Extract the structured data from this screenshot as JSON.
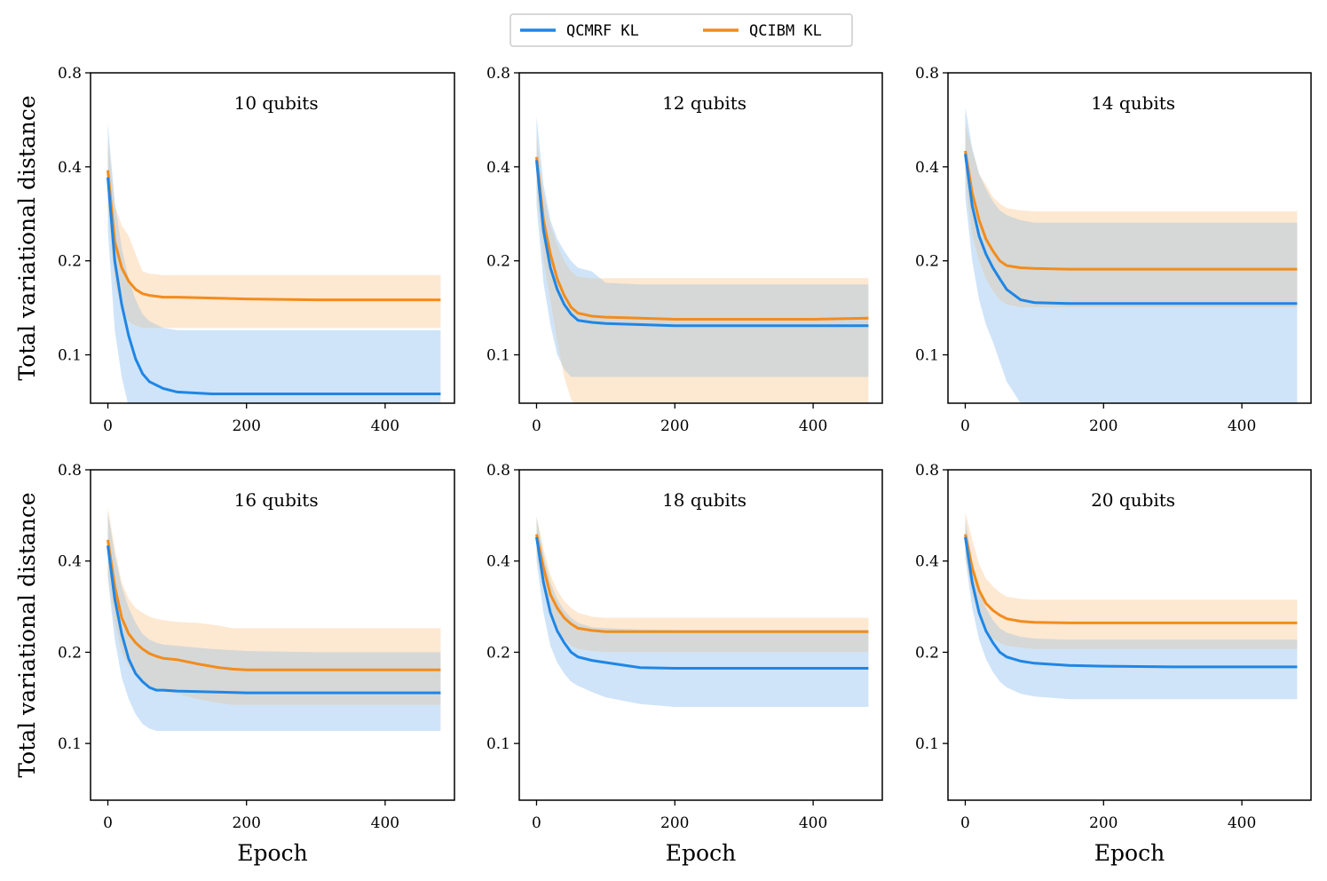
{
  "legend": {
    "location": "top-center",
    "entries": [
      {
        "label": "QCMRF KL",
        "color": "#1f86e6"
      },
      {
        "label": "QCIBM KL",
        "color": "#f28c1c"
      }
    ]
  },
  "colors": {
    "qcmrf": "#1f86e6",
    "qcibm": "#f28c1c",
    "qcmrf_band": "#cfe4f8",
    "qcibm_band": "#fde8d2",
    "overlap_band": "#d5d8d6"
  },
  "chart_data": [
    {
      "type": "line",
      "title": "10 qubits",
      "xlabel": "",
      "ylabel": "Total variational distance",
      "xlim": [
        -25,
        500
      ],
      "ylim_log": [
        0.07,
        0.8
      ],
      "y_scale": "log",
      "xticks": [
        0,
        200,
        400
      ],
      "xtick_labels": [
        "0",
        "200",
        "400"
      ],
      "yticks": [
        0.1,
        0.2,
        0.4,
        0.8
      ],
      "ytick_labels": [
        "0.1",
        "0.2",
        "0.4",
        "0.8"
      ],
      "series": [
        {
          "name": "QCMRF KL",
          "x": [
            0,
            10,
            20,
            30,
            40,
            50,
            60,
            80,
            100,
            150,
            200,
            300,
            400,
            480
          ],
          "mean": [
            0.37,
            0.2,
            0.145,
            0.115,
            0.097,
            0.087,
            0.082,
            0.078,
            0.076,
            0.075,
            0.075,
            0.075,
            0.075,
            0.075
          ],
          "upper": [
            0.55,
            0.31,
            0.22,
            0.175,
            0.15,
            0.135,
            0.128,
            0.122,
            0.12,
            0.12,
            0.12,
            0.12,
            0.12,
            0.12
          ],
          "lower": [
            0.25,
            0.12,
            0.085,
            0.068,
            0.062,
            0.06,
            0.06,
            0.06,
            0.06,
            0.06,
            0.06,
            0.06,
            0.06,
            0.06
          ]
        },
        {
          "name": "QCIBM KL",
          "x": [
            0,
            10,
            20,
            30,
            40,
            50,
            60,
            80,
            100,
            150,
            200,
            300,
            400,
            480
          ],
          "mean": [
            0.39,
            0.23,
            0.19,
            0.172,
            0.162,
            0.157,
            0.155,
            0.153,
            0.153,
            0.152,
            0.151,
            0.15,
            0.15,
            0.15
          ],
          "upper": [
            0.49,
            0.3,
            0.26,
            0.24,
            0.21,
            0.185,
            0.182,
            0.18,
            0.18,
            0.18,
            0.18,
            0.18,
            0.18,
            0.18
          ],
          "lower": [
            0.3,
            0.17,
            0.14,
            0.128,
            0.124,
            0.122,
            0.122,
            0.122,
            0.122,
            0.122,
            0.122,
            0.122,
            0.122,
            0.122
          ]
        }
      ]
    },
    {
      "type": "line",
      "title": "12 qubits",
      "xlabel": "",
      "ylabel": "",
      "xlim": [
        -25,
        500
      ],
      "ylim_log": [
        0.07,
        0.8
      ],
      "y_scale": "log",
      "xticks": [
        0,
        200,
        400
      ],
      "xtick_labels": [
        "0",
        "200",
        "400"
      ],
      "yticks": [
        0.1,
        0.2,
        0.4,
        0.8
      ],
      "ytick_labels": [
        "0.1",
        "0.2",
        "0.4",
        "0.8"
      ],
      "series": [
        {
          "name": "QCMRF KL",
          "x": [
            0,
            10,
            20,
            30,
            40,
            50,
            60,
            80,
            100,
            150,
            200,
            300,
            400,
            480
          ],
          "mean": [
            0.42,
            0.25,
            0.19,
            0.162,
            0.145,
            0.135,
            0.129,
            0.127,
            0.126,
            0.125,
            0.124,
            0.124,
            0.124,
            0.124
          ],
          "upper": [
            0.58,
            0.35,
            0.27,
            0.235,
            0.215,
            0.2,
            0.19,
            0.185,
            0.17,
            0.168,
            0.168,
            0.168,
            0.168,
            0.168
          ],
          "lower": [
            0.3,
            0.17,
            0.125,
            0.1,
            0.09,
            0.085,
            0.085,
            0.085,
            0.085,
            0.085,
            0.085,
            0.085,
            0.085,
            0.085
          ]
        },
        {
          "name": "QCIBM KL",
          "x": [
            0,
            10,
            20,
            30,
            40,
            50,
            60,
            80,
            100,
            150,
            200,
            300,
            400,
            480
          ],
          "mean": [
            0.43,
            0.27,
            0.21,
            0.175,
            0.155,
            0.142,
            0.136,
            0.133,
            0.132,
            0.131,
            0.13,
            0.13,
            0.13,
            0.131
          ],
          "upper": [
            0.5,
            0.33,
            0.26,
            0.225,
            0.2,
            0.185,
            0.178,
            0.176,
            0.176,
            0.176,
            0.176,
            0.176,
            0.176,
            0.176
          ],
          "lower": [
            0.34,
            0.2,
            0.15,
            0.11,
            0.085,
            0.072,
            0.068,
            0.066,
            0.066,
            0.066,
            0.066,
            0.066,
            0.066,
            0.066
          ]
        }
      ]
    },
    {
      "type": "line",
      "title": "14 qubits",
      "xlabel": "",
      "ylabel": "",
      "xlim": [
        -25,
        500
      ],
      "ylim_log": [
        0.07,
        0.8
      ],
      "y_scale": "log",
      "xticks": [
        0,
        200,
        400
      ],
      "xtick_labels": [
        "0",
        "200",
        "400"
      ],
      "yticks": [
        0.1,
        0.2,
        0.4,
        0.8
      ],
      "ytick_labels": [
        "0.1",
        "0.2",
        "0.4",
        "0.8"
      ],
      "series": [
        {
          "name": "QCMRF KL",
          "x": [
            0,
            10,
            20,
            30,
            40,
            50,
            60,
            80,
            100,
            150,
            200,
            300,
            400,
            480
          ],
          "mean": [
            0.44,
            0.3,
            0.24,
            0.21,
            0.19,
            0.175,
            0.162,
            0.15,
            0.147,
            0.146,
            0.146,
            0.146,
            0.146,
            0.146
          ],
          "upper": [
            0.62,
            0.46,
            0.38,
            0.34,
            0.31,
            0.29,
            0.28,
            0.27,
            0.265,
            0.265,
            0.265,
            0.265,
            0.265,
            0.265
          ],
          "lower": [
            0.32,
            0.2,
            0.15,
            0.125,
            0.11,
            0.095,
            0.082,
            0.07,
            0.065,
            0.065,
            0.065,
            0.065,
            0.065,
            0.065
          ]
        },
        {
          "name": "QCIBM KL",
          "x": [
            0,
            10,
            20,
            30,
            40,
            50,
            60,
            80,
            100,
            150,
            200,
            300,
            400,
            480
          ],
          "mean": [
            0.45,
            0.33,
            0.27,
            0.235,
            0.215,
            0.2,
            0.193,
            0.19,
            0.189,
            0.188,
            0.188,
            0.188,
            0.188,
            0.188
          ],
          "upper": [
            0.55,
            0.45,
            0.38,
            0.35,
            0.32,
            0.305,
            0.295,
            0.29,
            0.288,
            0.288,
            0.288,
            0.288,
            0.288,
            0.288
          ],
          "lower": [
            0.36,
            0.24,
            0.2,
            0.175,
            0.16,
            0.15,
            0.145,
            0.142,
            0.142,
            0.142,
            0.142,
            0.142,
            0.142,
            0.142
          ]
        }
      ]
    },
    {
      "type": "line",
      "title": "16 qubits",
      "xlabel": "Epoch",
      "ylabel": "Total variational distance",
      "xlim": [
        -25,
        500
      ],
      "ylim_log": [
        0.065,
        0.8
      ],
      "y_scale": "log",
      "xticks": [
        0,
        200,
        400
      ],
      "xtick_labels": [
        "0",
        "200",
        "400"
      ],
      "yticks": [
        0.1,
        0.2,
        0.4,
        0.8
      ],
      "ytick_labels": [
        "0.1",
        "0.2",
        "0.4",
        "0.8"
      ],
      "series": [
        {
          "name": "QCMRF KL",
          "x": [
            0,
            10,
            20,
            30,
            40,
            50,
            60,
            70,
            80,
            100,
            150,
            200,
            300,
            400,
            480
          ],
          "mean": [
            0.45,
            0.3,
            0.23,
            0.19,
            0.17,
            0.16,
            0.153,
            0.15,
            0.15,
            0.149,
            0.148,
            0.147,
            0.147,
            0.147,
            0.147
          ],
          "upper": [
            0.58,
            0.42,
            0.33,
            0.28,
            0.25,
            0.23,
            0.22,
            0.215,
            0.212,
            0.21,
            0.205,
            0.202,
            0.2,
            0.2,
            0.2
          ],
          "lower": [
            0.35,
            0.22,
            0.165,
            0.14,
            0.125,
            0.116,
            0.112,
            0.11,
            0.11,
            0.11,
            0.11,
            0.11,
            0.11,
            0.11,
            0.11
          ]
        },
        {
          "name": "QCIBM KL",
          "x": [
            0,
            10,
            20,
            30,
            40,
            50,
            60,
            70,
            80,
            100,
            130,
            160,
            180,
            200,
            300,
            400,
            480
          ],
          "mean": [
            0.47,
            0.33,
            0.26,
            0.23,
            0.215,
            0.205,
            0.198,
            0.194,
            0.191,
            0.189,
            0.183,
            0.178,
            0.176,
            0.175,
            0.175,
            0.175,
            0.175
          ],
          "upper": [
            0.6,
            0.44,
            0.34,
            0.3,
            0.28,
            0.27,
            0.262,
            0.258,
            0.255,
            0.252,
            0.25,
            0.245,
            0.24,
            0.24,
            0.24,
            0.24,
            0.24
          ],
          "lower": [
            0.36,
            0.25,
            0.2,
            0.18,
            0.17,
            0.16,
            0.152,
            0.15,
            0.148,
            0.146,
            0.14,
            0.136,
            0.134,
            0.134,
            0.134,
            0.134,
            0.134
          ]
        }
      ]
    },
    {
      "type": "line",
      "title": "18 qubits",
      "xlabel": "Epoch",
      "ylabel": "",
      "xlim": [
        -25,
        500
      ],
      "ylim_log": [
        0.065,
        0.8
      ],
      "y_scale": "log",
      "xticks": [
        0,
        200,
        400
      ],
      "xtick_labels": [
        "0",
        "200",
        "400"
      ],
      "yticks": [
        0.1,
        0.2,
        0.4,
        0.8
      ],
      "ytick_labels": [
        "0.1",
        "0.2",
        "0.4",
        "0.8"
      ],
      "series": [
        {
          "name": "QCMRF KL",
          "x": [
            0,
            10,
            20,
            30,
            40,
            50,
            60,
            80,
            100,
            150,
            200,
            300,
            400,
            480
          ],
          "mean": [
            0.48,
            0.34,
            0.27,
            0.235,
            0.215,
            0.2,
            0.193,
            0.188,
            0.185,
            0.178,
            0.177,
            0.177,
            0.177,
            0.177
          ],
          "upper": [
            0.56,
            0.42,
            0.34,
            0.3,
            0.275,
            0.26,
            0.25,
            0.242,
            0.24,
            0.238,
            0.237,
            0.237,
            0.237,
            0.237
          ],
          "lower": [
            0.4,
            0.27,
            0.21,
            0.185,
            0.17,
            0.16,
            0.155,
            0.148,
            0.142,
            0.135,
            0.132,
            0.132,
            0.132,
            0.132
          ]
        },
        {
          "name": "QCIBM KL",
          "x": [
            0,
            10,
            20,
            30,
            40,
            50,
            60,
            80,
            100,
            150,
            200,
            300,
            400,
            480
          ],
          "mean": [
            0.49,
            0.38,
            0.31,
            0.28,
            0.26,
            0.248,
            0.24,
            0.236,
            0.234,
            0.234,
            0.234,
            0.234,
            0.234,
            0.234
          ],
          "upper": [
            0.56,
            0.44,
            0.36,
            0.32,
            0.295,
            0.28,
            0.27,
            0.262,
            0.26,
            0.26,
            0.26,
            0.26,
            0.26,
            0.26
          ],
          "lower": [
            0.42,
            0.32,
            0.26,
            0.235,
            0.22,
            0.21,
            0.205,
            0.202,
            0.2,
            0.2,
            0.2,
            0.2,
            0.2,
            0.2
          ]
        }
      ]
    },
    {
      "type": "line",
      "title": "20 qubits",
      "xlabel": "Epoch",
      "ylabel": "",
      "xlim": [
        -25,
        500
      ],
      "ylim_log": [
        0.065,
        0.8
      ],
      "y_scale": "log",
      "xticks": [
        0,
        200,
        400
      ],
      "xtick_labels": [
        "0",
        "200",
        "400"
      ],
      "yticks": [
        0.1,
        0.2,
        0.4,
        0.8
      ],
      "ytick_labels": [
        "0.1",
        "0.2",
        "0.4",
        "0.8"
      ],
      "series": [
        {
          "name": "QCMRF KL",
          "x": [
            0,
            10,
            20,
            30,
            40,
            50,
            60,
            80,
            100,
            150,
            200,
            300,
            400,
            480
          ],
          "mean": [
            0.48,
            0.34,
            0.27,
            0.235,
            0.215,
            0.2,
            0.193,
            0.187,
            0.184,
            0.181,
            0.18,
            0.179,
            0.179,
            0.179
          ],
          "upper": [
            0.55,
            0.4,
            0.32,
            0.28,
            0.255,
            0.24,
            0.232,
            0.225,
            0.222,
            0.22,
            0.22,
            0.22,
            0.22,
            0.22
          ],
          "lower": [
            0.41,
            0.28,
            0.22,
            0.19,
            0.172,
            0.16,
            0.153,
            0.146,
            0.143,
            0.14,
            0.14,
            0.14,
            0.14,
            0.14
          ]
        },
        {
          "name": "QCIBM KL",
          "x": [
            0,
            10,
            20,
            30,
            40,
            50,
            60,
            80,
            100,
            150,
            200,
            300,
            400,
            480
          ],
          "mean": [
            0.49,
            0.38,
            0.32,
            0.29,
            0.275,
            0.265,
            0.258,
            0.253,
            0.251,
            0.25,
            0.25,
            0.25,
            0.25,
            0.25
          ],
          "upper": [
            0.58,
            0.47,
            0.39,
            0.35,
            0.33,
            0.315,
            0.305,
            0.3,
            0.298,
            0.298,
            0.298,
            0.298,
            0.298,
            0.298
          ],
          "lower": [
            0.41,
            0.31,
            0.26,
            0.235,
            0.222,
            0.215,
            0.21,
            0.207,
            0.205,
            0.205,
            0.205,
            0.205,
            0.205,
            0.205
          ]
        }
      ]
    }
  ]
}
